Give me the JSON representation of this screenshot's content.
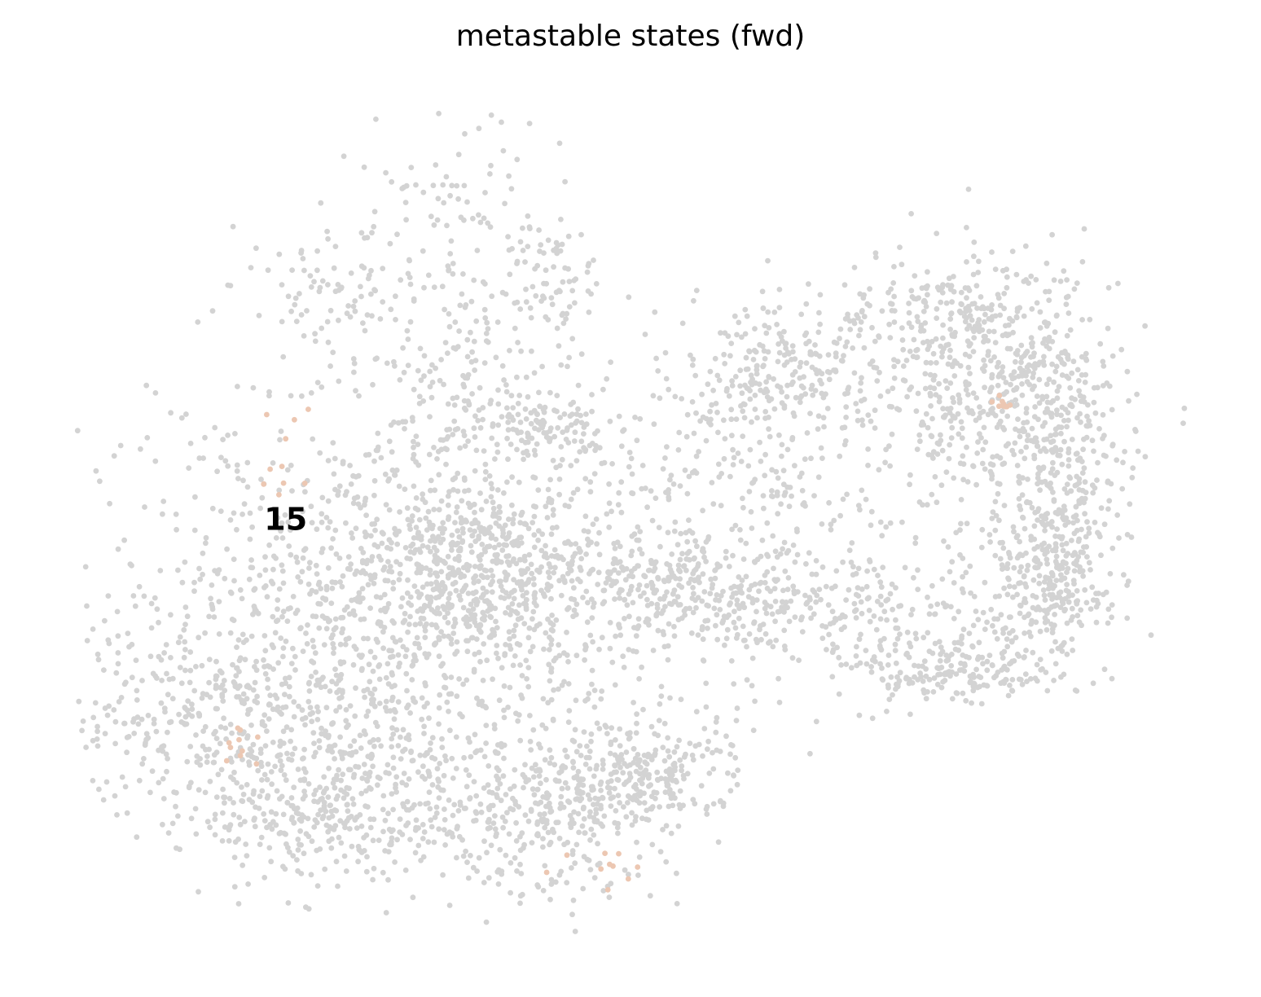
{
  "chart_data": {
    "type": "scatter",
    "title": "metastable states (fwd)",
    "xlabel": "",
    "ylabel": "",
    "axes_visible": false,
    "grid": false,
    "legend": "on data",
    "colors": {
      "background_cells": "#d3d3d3",
      "state_15": "#ecc7b2",
      "label": "#000000"
    },
    "series": [
      {
        "name": "15",
        "label_anchor": [
          0.188,
          0.5
        ],
        "highlighted_regions": [
          {
            "center": [
              0.185,
              0.43
            ],
            "spread": [
              0.012,
              0.035
            ]
          },
          {
            "center": [
              0.148,
              0.78
            ],
            "spread": [
              0.01,
              0.02
            ]
          },
          {
            "center": [
              0.47,
              0.92
            ],
            "spread": [
              0.02,
              0.012
            ]
          },
          {
            "center": [
              0.835,
              0.36
            ],
            "spread": [
              0.004,
              0.004
            ]
          }
        ]
      }
    ],
    "clusters_background": [
      {
        "center": [
          0.345,
          0.27
        ],
        "spread": [
          0.055,
          0.14
        ],
        "n": 320
      },
      {
        "center": [
          0.22,
          0.22
        ],
        "spread": [
          0.04,
          0.04
        ],
        "n": 60
      },
      {
        "center": [
          0.42,
          0.38
        ],
        "spread": [
          0.03,
          0.02
        ],
        "n": 90
      },
      {
        "center": [
          0.435,
          0.21
        ],
        "spread": [
          0.02,
          0.03
        ],
        "n": 50
      },
      {
        "center": [
          0.3,
          0.6
        ],
        "spread": [
          0.14,
          0.12
        ],
        "n": 1400
      },
      {
        "center": [
          0.36,
          0.56
        ],
        "spread": [
          0.05,
          0.05
        ],
        "n": 350
      },
      {
        "center": [
          0.12,
          0.75
        ],
        "spread": [
          0.07,
          0.06
        ],
        "n": 300
      },
      {
        "center": [
          0.23,
          0.84
        ],
        "spread": [
          0.06,
          0.05
        ],
        "n": 350
      },
      {
        "center": [
          0.4,
          0.86
        ],
        "spread": [
          0.06,
          0.05
        ],
        "n": 300
      },
      {
        "center": [
          0.49,
          0.82
        ],
        "spread": [
          0.04,
          0.04
        ],
        "n": 200
      },
      {
        "center": [
          0.53,
          0.79
        ],
        "spread": [
          0.035,
          0.03
        ],
        "n": 80
      },
      {
        "center": [
          0.56,
          0.58
        ],
        "spread": [
          0.06,
          0.03
        ],
        "n": 250
      },
      {
        "center": [
          0.7,
          0.61
        ],
        "spread": [
          0.08,
          0.035
        ],
        "n": 220
      },
      {
        "center": [
          0.78,
          0.68
        ],
        "spread": [
          0.05,
          0.02
        ],
        "n": 200
      },
      {
        "center": [
          0.64,
          0.32
        ],
        "spread": [
          0.05,
          0.04
        ],
        "n": 220
      },
      {
        "center": [
          0.8,
          0.27
        ],
        "spread": [
          0.06,
          0.05
        ],
        "n": 300
      },
      {
        "center": [
          0.82,
          0.36
        ],
        "spread": [
          0.05,
          0.07
        ],
        "n": 300
      },
      {
        "center": [
          0.89,
          0.45
        ],
        "spread": [
          0.03,
          0.1
        ],
        "n": 350
      },
      {
        "center": [
          0.87,
          0.58
        ],
        "spread": [
          0.03,
          0.05
        ],
        "n": 200
      },
      {
        "center": [
          0.58,
          0.4
        ],
        "spread": [
          0.07,
          0.06
        ],
        "n": 120
      },
      {
        "center": [
          0.65,
          0.47
        ],
        "spread": [
          0.04,
          0.03
        ],
        "n": 60
      }
    ]
  }
}
